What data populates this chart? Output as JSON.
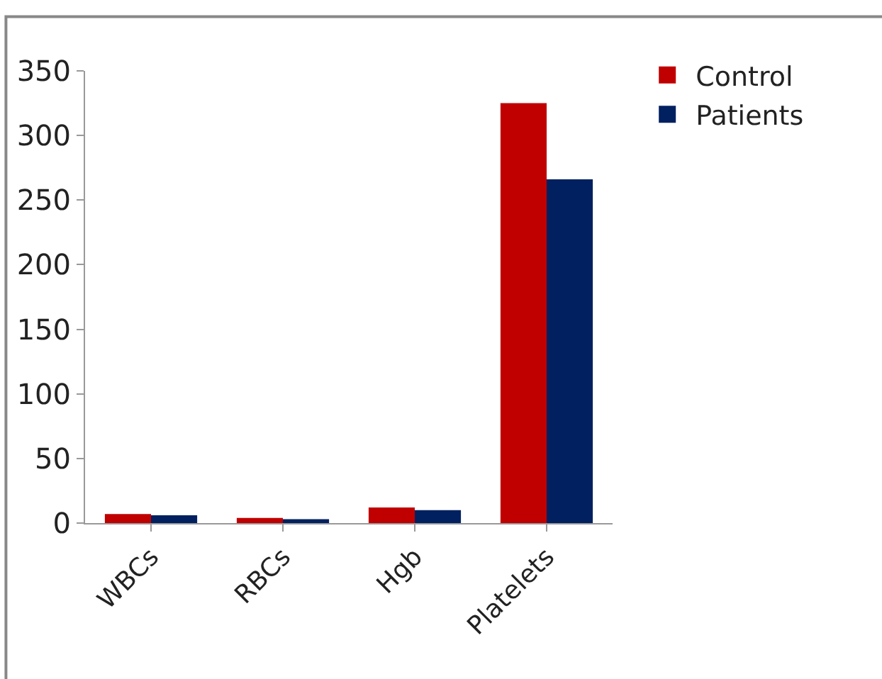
{
  "chart_data": {
    "type": "bar",
    "categories": [
      "WBCs",
      "RBCs",
      "Hgb",
      "Platelets"
    ],
    "series": [
      {
        "name": "Control",
        "color": "#c00000",
        "values": [
          7,
          4,
          12,
          325
        ]
      },
      {
        "name": "Patients",
        "color": "#002060",
        "values": [
          6,
          3,
          10,
          266
        ]
      }
    ],
    "ylim": [
      0,
      350
    ],
    "yticks": [
      0,
      50,
      100,
      150,
      200,
      250,
      300,
      350
    ],
    "legend": "top right"
  }
}
